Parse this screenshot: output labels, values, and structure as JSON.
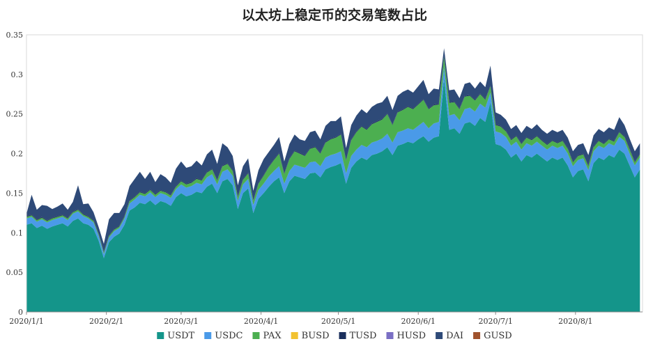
{
  "chart_data": {
    "type": "area",
    "stacked": true,
    "title": "以太坊上稳定币的交易笔数占比",
    "xlabel": "",
    "ylabel": "",
    "x_range": [
      "2020-01-01",
      "2020-08-27"
    ],
    "ylim": [
      0,
      0.35
    ],
    "grid": false,
    "legend_position": "bottom",
    "y_ticks": [
      "0",
      "0.05",
      "0.1",
      "0.15",
      "0.2",
      "0.25",
      "0.3",
      "0.35"
    ],
    "x_ticks": [
      {
        "date": "2020-01-01",
        "label": "2020/1/1"
      },
      {
        "date": "2020-02-01",
        "label": "2020/2/1"
      },
      {
        "date": "2020-03-01",
        "label": "2020/3/1"
      },
      {
        "date": "2020-04-01",
        "label": "2020/4/1"
      },
      {
        "date": "2020-05-01",
        "label": "2020/5/1"
      },
      {
        "date": "2020-06-01",
        "label": "2020/6/1"
      },
      {
        "date": "2020-07-01",
        "label": "2020/7/1"
      },
      {
        "date": "2020-08-01",
        "label": "2020/8/1"
      }
    ],
    "x": [
      "2020-01-01",
      "2020-01-03",
      "2020-01-05",
      "2020-01-07",
      "2020-01-09",
      "2020-01-11",
      "2020-01-13",
      "2020-01-15",
      "2020-01-17",
      "2020-01-19",
      "2020-01-21",
      "2020-01-23",
      "2020-01-25",
      "2020-01-27",
      "2020-01-29",
      "2020-01-31",
      "2020-02-02",
      "2020-02-04",
      "2020-02-06",
      "2020-02-08",
      "2020-02-10",
      "2020-02-12",
      "2020-02-14",
      "2020-02-16",
      "2020-02-18",
      "2020-02-20",
      "2020-02-22",
      "2020-02-24",
      "2020-02-26",
      "2020-02-28",
      "2020-03-01",
      "2020-03-03",
      "2020-03-05",
      "2020-03-07",
      "2020-03-09",
      "2020-03-11",
      "2020-03-13",
      "2020-03-15",
      "2020-03-17",
      "2020-03-19",
      "2020-03-21",
      "2020-03-23",
      "2020-03-25",
      "2020-03-27",
      "2020-03-29",
      "2020-03-31",
      "2020-04-02",
      "2020-04-04",
      "2020-04-06",
      "2020-04-08",
      "2020-04-10",
      "2020-04-12",
      "2020-04-14",
      "2020-04-16",
      "2020-04-18",
      "2020-04-20",
      "2020-04-22",
      "2020-04-24",
      "2020-04-26",
      "2020-04-28",
      "2020-04-30",
      "2020-05-02",
      "2020-05-04",
      "2020-05-06",
      "2020-05-08",
      "2020-05-10",
      "2020-05-12",
      "2020-05-14",
      "2020-05-16",
      "2020-05-18",
      "2020-05-20",
      "2020-05-22",
      "2020-05-24",
      "2020-05-26",
      "2020-05-28",
      "2020-05-30",
      "2020-06-01",
      "2020-06-03",
      "2020-06-05",
      "2020-06-07",
      "2020-06-09",
      "2020-06-11",
      "2020-06-13",
      "2020-06-15",
      "2020-06-17",
      "2020-06-19",
      "2020-06-21",
      "2020-06-23",
      "2020-06-25",
      "2020-06-27",
      "2020-06-29",
      "2020-07-01",
      "2020-07-03",
      "2020-07-05",
      "2020-07-07",
      "2020-07-09",
      "2020-07-11",
      "2020-07-13",
      "2020-07-15",
      "2020-07-17",
      "2020-07-19",
      "2020-07-21",
      "2020-07-23",
      "2020-07-25",
      "2020-07-27",
      "2020-07-29",
      "2020-07-31",
      "2020-08-02",
      "2020-08-04",
      "2020-08-06",
      "2020-08-08",
      "2020-08-10",
      "2020-08-12",
      "2020-08-14",
      "2020-08-16",
      "2020-08-18",
      "2020-08-20",
      "2020-08-22",
      "2020-08-24",
      "2020-08-26"
    ],
    "series": [
      {
        "name": "USDT",
        "color": "#14958a",
        "values": [
          0.11,
          0.112,
          0.106,
          0.109,
          0.105,
          0.108,
          0.11,
          0.112,
          0.108,
          0.115,
          0.118,
          0.112,
          0.11,
          0.105,
          0.09,
          0.068,
          0.088,
          0.095,
          0.099,
          0.11,
          0.128,
          0.132,
          0.138,
          0.136,
          0.141,
          0.135,
          0.14,
          0.138,
          0.134,
          0.145,
          0.15,
          0.146,
          0.148,
          0.152,
          0.15,
          0.158,
          0.162,
          0.15,
          0.165,
          0.168,
          0.16,
          0.13,
          0.15,
          0.156,
          0.125,
          0.143,
          0.15,
          0.158,
          0.165,
          0.17,
          0.15,
          0.165,
          0.172,
          0.17,
          0.168,
          0.175,
          0.176,
          0.17,
          0.18,
          0.183,
          0.185,
          0.188,
          0.162,
          0.182,
          0.19,
          0.195,
          0.192,
          0.198,
          0.2,
          0.203,
          0.208,
          0.198,
          0.21,
          0.212,
          0.215,
          0.213,
          0.218,
          0.222,
          0.215,
          0.22,
          0.222,
          0.295,
          0.23,
          0.232,
          0.225,
          0.238,
          0.24,
          0.235,
          0.245,
          0.24,
          0.265,
          0.212,
          0.21,
          0.205,
          0.195,
          0.2,
          0.19,
          0.198,
          0.195,
          0.2,
          0.195,
          0.19,
          0.195,
          0.192,
          0.195,
          0.185,
          0.17,
          0.178,
          0.18,
          0.165,
          0.188,
          0.195,
          0.192,
          0.198,
          0.195,
          0.205,
          0.2,
          0.185,
          0.17,
          0.18
        ]
      },
      {
        "name": "USDC",
        "color": "#4a9ae8",
        "values": [
          0.008,
          0.008,
          0.008,
          0.008,
          0.008,
          0.008,
          0.008,
          0.008,
          0.008,
          0.009,
          0.009,
          0.009,
          0.008,
          0.008,
          0.006,
          0.005,
          0.006,
          0.007,
          0.007,
          0.008,
          0.009,
          0.01,
          0.01,
          0.01,
          0.01,
          0.01,
          0.01,
          0.01,
          0.01,
          0.01,
          0.011,
          0.011,
          0.011,
          0.011,
          0.011,
          0.012,
          0.012,
          0.011,
          0.012,
          0.012,
          0.012,
          0.01,
          0.011,
          0.012,
          0.01,
          0.011,
          0.012,
          0.013,
          0.013,
          0.014,
          0.012,
          0.013,
          0.014,
          0.014,
          0.014,
          0.014,
          0.014,
          0.014,
          0.015,
          0.015,
          0.015,
          0.015,
          0.013,
          0.015,
          0.015,
          0.016,
          0.016,
          0.016,
          0.016,
          0.016,
          0.017,
          0.016,
          0.017,
          0.017,
          0.017,
          0.017,
          0.017,
          0.018,
          0.017,
          0.018,
          0.018,
          0.015,
          0.018,
          0.018,
          0.017,
          0.018,
          0.018,
          0.018,
          0.018,
          0.018,
          0.012,
          0.016,
          0.016,
          0.016,
          0.015,
          0.015,
          0.015,
          0.015,
          0.015,
          0.015,
          0.015,
          0.015,
          0.015,
          0.015,
          0.015,
          0.015,
          0.014,
          0.014,
          0.014,
          0.014,
          0.015,
          0.015,
          0.015,
          0.015,
          0.015,
          0.016,
          0.016,
          0.015,
          0.015,
          0.015
        ]
      },
      {
        "name": "PAX",
        "color": "#4caf50",
        "values": [
          0.002,
          0.002,
          0.002,
          0.002,
          0.002,
          0.002,
          0.002,
          0.002,
          0.002,
          0.002,
          0.002,
          0.002,
          0.002,
          0.002,
          0.002,
          0.002,
          0.002,
          0.002,
          0.002,
          0.002,
          0.003,
          0.003,
          0.003,
          0.003,
          0.003,
          0.003,
          0.003,
          0.003,
          0.003,
          0.003,
          0.004,
          0.004,
          0.004,
          0.005,
          0.005,
          0.006,
          0.006,
          0.005,
          0.007,
          0.007,
          0.006,
          0.005,
          0.006,
          0.007,
          0.005,
          0.008,
          0.01,
          0.012,
          0.014,
          0.016,
          0.012,
          0.015,
          0.017,
          0.016,
          0.015,
          0.017,
          0.018,
          0.016,
          0.019,
          0.02,
          0.02,
          0.021,
          0.016,
          0.02,
          0.022,
          0.023,
          0.022,
          0.023,
          0.024,
          0.024,
          0.025,
          0.022,
          0.025,
          0.026,
          0.027,
          0.026,
          0.027,
          0.028,
          0.024,
          0.023,
          0.022,
          0.012,
          0.016,
          0.015,
          0.014,
          0.016,
          0.015,
          0.014,
          0.012,
          0.01,
          0.008,
          0.008,
          0.008,
          0.007,
          0.007,
          0.007,
          0.007,
          0.007,
          0.007,
          0.007,
          0.006,
          0.006,
          0.006,
          0.006,
          0.006,
          0.006,
          0.005,
          0.005,
          0.005,
          0.005,
          0.005,
          0.006,
          0.005,
          0.005,
          0.005,
          0.006,
          0.005,
          0.005,
          0.004,
          0.004
        ]
      },
      {
        "name": "BUSD",
        "color": "#f2c230",
        "values": [
          0.0,
          0.0,
          0.0,
          0.0,
          0.0,
          0.0,
          0.0,
          0.0,
          0.0,
          0.0,
          0.0,
          0.0,
          0.0,
          0.0,
          0.0,
          0.0,
          0.0,
          0.0,
          0.0,
          0.0,
          0.0,
          0.0,
          0.0,
          0.0,
          0.0,
          0.0,
          0.0,
          0.0,
          0.0,
          0.0,
          0.0,
          0.0,
          0.0,
          0.0,
          0.0,
          0.0,
          0.0,
          0.0,
          0.0,
          0.0,
          0.0,
          0.0,
          0.0,
          0.0,
          0.0,
          0.0,
          0.0,
          0.0,
          0.0,
          0.0,
          0.0,
          0.0,
          0.0,
          0.0,
          0.0,
          0.0,
          0.0,
          0.0,
          0.0,
          0.0,
          0.0,
          0.0,
          0.0,
          0.0,
          0.0,
          0.0,
          0.0,
          0.0,
          0.0,
          0.0,
          0.0,
          0.0,
          0.0,
          0.0,
          0.0,
          0.0,
          0.0,
          0.0,
          0.0,
          0.0,
          0.0,
          0.0,
          0.0,
          0.0,
          0.0,
          0.0,
          0.0,
          0.0,
          0.0,
          0.0,
          0.0,
          0.0,
          0.0,
          0.0,
          0.0,
          0.0,
          0.0,
          0.0,
          0.0,
          0.0,
          0.0,
          0.0,
          0.0,
          0.0,
          0.0,
          0.0,
          0.0,
          0.0,
          0.0,
          0.0,
          0.0,
          0.0,
          0.0,
          0.0,
          0.0,
          0.0,
          0.0,
          0.0,
          0.0,
          0.0
        ]
      },
      {
        "name": "TUSD",
        "color": "#1a2f5c",
        "values": [
          0.001,
          0.001,
          0.001,
          0.001,
          0.001,
          0.001,
          0.001,
          0.001,
          0.001,
          0.001,
          0.001,
          0.001,
          0.001,
          0.001,
          0.001,
          0.001,
          0.001,
          0.001,
          0.001,
          0.001,
          0.001,
          0.001,
          0.001,
          0.001,
          0.001,
          0.001,
          0.001,
          0.001,
          0.001,
          0.001,
          0.001,
          0.001,
          0.001,
          0.001,
          0.001,
          0.001,
          0.001,
          0.001,
          0.001,
          0.001,
          0.001,
          0.001,
          0.001,
          0.001,
          0.001,
          0.001,
          0.001,
          0.001,
          0.001,
          0.001,
          0.001,
          0.001,
          0.001,
          0.001,
          0.001,
          0.001,
          0.001,
          0.001,
          0.001,
          0.001,
          0.001,
          0.001,
          0.001,
          0.001,
          0.001,
          0.001,
          0.001,
          0.001,
          0.001,
          0.001,
          0.001,
          0.001,
          0.001,
          0.001,
          0.001,
          0.001,
          0.001,
          0.001,
          0.001,
          0.001,
          0.001,
          0.001,
          0.001,
          0.001,
          0.001,
          0.001,
          0.001,
          0.001,
          0.001,
          0.001,
          0.001,
          0.001,
          0.001,
          0.001,
          0.001,
          0.001,
          0.001,
          0.001,
          0.001,
          0.001,
          0.001,
          0.001,
          0.001,
          0.001,
          0.001,
          0.001,
          0.001,
          0.001,
          0.001,
          0.001,
          0.001,
          0.001,
          0.001,
          0.001,
          0.001,
          0.001,
          0.001,
          0.001,
          0.001,
          0.001
        ]
      },
      {
        "name": "HUSD",
        "color": "#7a6fc4",
        "values": [
          0.0,
          0.0,
          0.0,
          0.0,
          0.0,
          0.0,
          0.0,
          0.0,
          0.0,
          0.0,
          0.0,
          0.0,
          0.0,
          0.0,
          0.0,
          0.0,
          0.0,
          0.0,
          0.0,
          0.0,
          0.0,
          0.0,
          0.0,
          0.0,
          0.0,
          0.0,
          0.0,
          0.0,
          0.0,
          0.0,
          0.0,
          0.0,
          0.0,
          0.0,
          0.0,
          0.0,
          0.0,
          0.0,
          0.0,
          0.0,
          0.0,
          0.0,
          0.0,
          0.0,
          0.0,
          0.0,
          0.0,
          0.0,
          0.0,
          0.0,
          0.0,
          0.0,
          0.0,
          0.0,
          0.0,
          0.0,
          0.0,
          0.0,
          0.0,
          0.0,
          0.0,
          0.0,
          0.0,
          0.0,
          0.0,
          0.0,
          0.0,
          0.0,
          0.0,
          0.0,
          0.0,
          0.0,
          0.0,
          0.0,
          0.0,
          0.0,
          0.0,
          0.0,
          0.0,
          0.0,
          0.0,
          0.0,
          0.0,
          0.0,
          0.0,
          0.0,
          0.0,
          0.0,
          0.0,
          0.0,
          0.0,
          0.0,
          0.0,
          0.0,
          0.0,
          0.0,
          0.0,
          0.0,
          0.0,
          0.0,
          0.0,
          0.0,
          0.0,
          0.0,
          0.0,
          0.0,
          0.0,
          0.0,
          0.0,
          0.0,
          0.0,
          0.0,
          0.0,
          0.0,
          0.0,
          0.0,
          0.0,
          0.0,
          0.0,
          0.0
        ]
      },
      {
        "name": "DAI",
        "color": "#2e4a78",
        "values": [
          0.003,
          0.025,
          0.012,
          0.015,
          0.018,
          0.011,
          0.012,
          0.014,
          0.01,
          0.012,
          0.03,
          0.012,
          0.016,
          0.01,
          0.008,
          0.01,
          0.02,
          0.02,
          0.016,
          0.015,
          0.018,
          0.022,
          0.025,
          0.018,
          0.022,
          0.015,
          0.02,
          0.018,
          0.015,
          0.022,
          0.024,
          0.02,
          0.02,
          0.022,
          0.018,
          0.022,
          0.024,
          0.02,
          0.028,
          0.02,
          0.018,
          0.014,
          0.016,
          0.018,
          0.012,
          0.016,
          0.02,
          0.018,
          0.018,
          0.02,
          0.015,
          0.018,
          0.02,
          0.017,
          0.018,
          0.02,
          0.02,
          0.017,
          0.02,
          0.022,
          0.02,
          0.022,
          0.015,
          0.018,
          0.02,
          0.021,
          0.02,
          0.021,
          0.022,
          0.021,
          0.022,
          0.018,
          0.02,
          0.022,
          0.021,
          0.02,
          0.022,
          0.024,
          0.018,
          0.02,
          0.018,
          0.01,
          0.015,
          0.015,
          0.013,
          0.015,
          0.016,
          0.014,
          0.015,
          0.015,
          0.025,
          0.015,
          0.014,
          0.014,
          0.013,
          0.013,
          0.013,
          0.014,
          0.013,
          0.014,
          0.013,
          0.013,
          0.013,
          0.013,
          0.013,
          0.013,
          0.013,
          0.013,
          0.013,
          0.013,
          0.014,
          0.014,
          0.014,
          0.014,
          0.014,
          0.018,
          0.014,
          0.013,
          0.013,
          0.013
        ]
      },
      {
        "name": "GUSD",
        "color": "#a0522d",
        "values": [
          0.0,
          0.0,
          0.0,
          0.0,
          0.0,
          0.0,
          0.0,
          0.0,
          0.0,
          0.0,
          0.0,
          0.0,
          0.0,
          0.0,
          0.0,
          0.0,
          0.0,
          0.0,
          0.0,
          0.0,
          0.0,
          0.0,
          0.0,
          0.0,
          0.0,
          0.0,
          0.0,
          0.0,
          0.0,
          0.0,
          0.0,
          0.0,
          0.0,
          0.0,
          0.0,
          0.0,
          0.0,
          0.0,
          0.0,
          0.0,
          0.0,
          0.0,
          0.0,
          0.0,
          0.0,
          0.0,
          0.0,
          0.0,
          0.0,
          0.0,
          0.0,
          0.0,
          0.0,
          0.0,
          0.0,
          0.0,
          0.0,
          0.0,
          0.0,
          0.0,
          0.0,
          0.0,
          0.0,
          0.0,
          0.0,
          0.0,
          0.0,
          0.0,
          0.0,
          0.0,
          0.0,
          0.0,
          0.0,
          0.0,
          0.0,
          0.0,
          0.0,
          0.0,
          0.0,
          0.0,
          0.0,
          0.0,
          0.0,
          0.0,
          0.0,
          0.0,
          0.0,
          0.0,
          0.0,
          0.0,
          0.0,
          0.0,
          0.0,
          0.0,
          0.0,
          0.0,
          0.0,
          0.0,
          0.0,
          0.0,
          0.0,
          0.0,
          0.0,
          0.0,
          0.0,
          0.0,
          0.0,
          0.0,
          0.0,
          0.0,
          0.0,
          0.0,
          0.0,
          0.0,
          0.0,
          0.0,
          0.0,
          0.0,
          0.0,
          0.0
        ]
      }
    ]
  }
}
